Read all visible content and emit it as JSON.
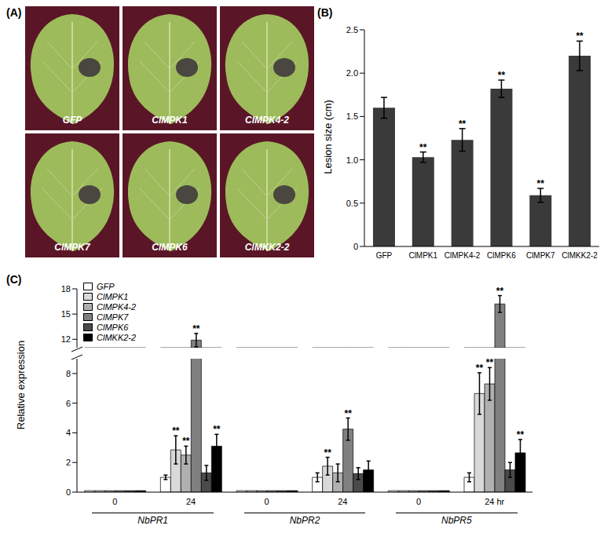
{
  "image_panel": {
    "title": "(A)",
    "labels": [
      "GFP",
      "ClMPK1",
      "ClMPK4-2",
      "ClMPK7",
      "ClMPK6",
      "ClMKK2-2"
    ]
  },
  "chart_data": [
    {
      "type": "bar",
      "title": "(B)",
      "categories": [
        "GFP",
        "ClMPK1",
        "ClMPK4-2",
        "ClMPK6",
        "ClMPK7",
        "ClMKK2-2"
      ],
      "values": [
        1.6,
        1.03,
        1.23,
        1.82,
        0.59,
        2.2
      ],
      "errors": [
        0.12,
        0.06,
        0.13,
        0.1,
        0.08,
        0.17
      ],
      "significance": [
        null,
        "**",
        "**",
        "**",
        "**",
        "**"
      ],
      "color": "#3a3a3a",
      "ylabel": "Lesion size (cm)",
      "ylim": [
        0,
        2.5
      ],
      "yticks": [
        0,
        0.5,
        {
          "value": 1,
          "label": "1.0"
        },
        1.5,
        {
          "value": 2,
          "label": "2.0"
        },
        2.5
      ],
      "grid": false
    },
    {
      "type": "bar",
      "title": "(C)",
      "categories": [
        "0",
        "24",
        "0",
        "24",
        "0",
        "24 hr"
      ],
      "groups": [
        "NbPR1",
        "NbPR2",
        "NbPR5"
      ],
      "ylabel": "Relative expression",
      "ylim": [
        0,
        18
      ],
      "ybreak": [
        9,
        11
      ],
      "yticks": [
        0,
        2,
        4,
        6,
        8,
        12,
        15,
        18
      ],
      "legend": "upper left",
      "grid": false,
      "series": [
        {
          "name": "GFP",
          "color": "#ffffff",
          "values": [
            0.1,
            1.0,
            0.1,
            1.0,
            0.1,
            1.0
          ],
          "errors": [
            null,
            0.15,
            null,
            0.3,
            null,
            0.3
          ],
          "significance": [
            null,
            null,
            null,
            null,
            null,
            null
          ]
        },
        {
          "name": "ClMPK1",
          "color": "#d9d9d9",
          "values": [
            0.1,
            2.85,
            0.1,
            1.75,
            0.1,
            6.65
          ],
          "errors": [
            null,
            0.95,
            null,
            0.6,
            null,
            1.4
          ],
          "significance": [
            null,
            "**",
            null,
            "**",
            null,
            "**"
          ]
        },
        {
          "name": "ClMPK4-2",
          "color": "#b0b0b0",
          "values": [
            0.1,
            2.5,
            0.1,
            1.3,
            0.1,
            7.3
          ],
          "errors": [
            null,
            0.6,
            null,
            0.6,
            null,
            1.1
          ],
          "significance": [
            null,
            "**",
            null,
            null,
            null,
            "**"
          ]
        },
        {
          "name": "ClMPK7",
          "color": "#808080",
          "values": [
            0.1,
            11.9,
            0.1,
            4.25,
            0.1,
            16.2
          ],
          "errors": [
            null,
            0.8,
            null,
            0.75,
            null,
            1.0
          ],
          "significance": [
            null,
            "**",
            null,
            "**",
            null,
            "**"
          ]
        },
        {
          "name": "ClMPK6",
          "color": "#4a4a4a",
          "values": [
            0.1,
            1.3,
            0.1,
            1.25,
            0.1,
            1.5
          ],
          "errors": [
            null,
            0.5,
            null,
            0.4,
            null,
            0.5
          ],
          "significance": [
            null,
            null,
            null,
            null,
            null,
            null
          ]
        },
        {
          "name": "ClMKK2-2",
          "color": "#000000",
          "values": [
            0.1,
            3.1,
            0.1,
            1.5,
            0.1,
            2.65
          ],
          "errors": [
            null,
            0.8,
            null,
            0.6,
            null,
            0.9
          ],
          "significance": [
            null,
            "**",
            null,
            null,
            null,
            "**"
          ]
        }
      ]
    }
  ]
}
